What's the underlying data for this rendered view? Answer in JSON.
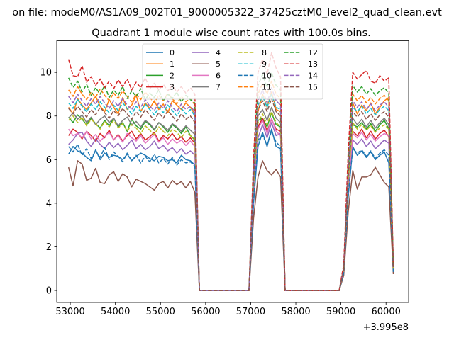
{
  "suptitle": "on file: modeM0/AS1A09_002T01_9000005322_37425cztM0_level2_quad_clean.evt",
  "chart_data": {
    "type": "line",
    "title": "Quadrant 1 module wise count rates with 100.0s bins.",
    "xlabel": "",
    "ylabel": "",
    "x_offset_label": "+3.995e8",
    "xlim": [
      52700,
      60500
    ],
    "ylim": [
      -0.55,
      11.45
    ],
    "xticks": [
      53000,
      54000,
      55000,
      56000,
      57000,
      58000,
      59000,
      60000
    ],
    "yticks": [
      0,
      2,
      4,
      6,
      8,
      10
    ],
    "grid": false,
    "legend": {
      "position": "top-center",
      "columns": 4
    },
    "segments": [
      {
        "start": 52962,
        "end": 55762,
        "step": 100
      },
      {
        "start": 55862,
        "end": 57162,
        "step": 100
      },
      {
        "start": 57262,
        "end": 57862,
        "step": 100
      },
      {
        "start": 57962,
        "end": 58962,
        "step": 100
      },
      {
        "start": 59062,
        "end": 60162,
        "step": 100
      }
    ],
    "series": [
      {
        "name": "0",
        "color": "#1f77b4",
        "dashed": false,
        "a": [
          6.25,
          6.6,
          6.4,
          6.3,
          6.1,
          5.95,
          6.45,
          6.0,
          6.3,
          6.1,
          6.2,
          6.15,
          6.0,
          6.25,
          5.95,
          6.15,
          6.3,
          6.2,
          6.05,
          5.95,
          6.15,
          6.1,
          5.95,
          6.0,
          5.85,
          6.2,
          6.0,
          5.95,
          5.75
        ],
        "c": [
          4.0,
          6.6,
          7.25,
          6.6,
          7.4,
          6.6,
          6.5
        ],
        "e": [
          0.8,
          4.3,
          6.6,
          6.2,
          6.4,
          6.1,
          6.35,
          6.0,
          6.2,
          6.35,
          5.85,
          0.9
        ]
      },
      {
        "name": "1",
        "color": "#ff7f0e",
        "dashed": false,
        "a": [
          8.4,
          8.1,
          8.8,
          8.5,
          8.3,
          8.6,
          8.9,
          8.45,
          8.2,
          8.75,
          8.4,
          8.1,
          8.85,
          8.3,
          8.5,
          8.95,
          8.2,
          8.6,
          8.35,
          8.7,
          8.3,
          8.55,
          8.15,
          8.7,
          8.5,
          8.3,
          8.6,
          8.4,
          8.1
        ],
        "c": [
          5.0,
          8.2,
          9.0,
          8.4,
          9.1,
          8.3,
          8.2
        ],
        "e": [
          1.05,
          5.5,
          8.6,
          8.1,
          8.5,
          8.25,
          8.6,
          8.1,
          8.4,
          8.7,
          8.85,
          1.15
        ]
      },
      {
        "name": "2",
        "color": "#2ca02c",
        "dashed": false,
        "a": [
          7.95,
          7.7,
          8.05,
          7.85,
          7.6,
          7.9,
          7.65,
          7.45,
          7.8,
          7.55,
          7.9,
          7.5,
          7.7,
          7.3,
          7.85,
          7.55,
          7.4,
          7.75,
          7.6,
          7.35,
          7.7,
          7.5,
          7.25,
          7.6,
          7.45,
          7.2,
          7.5,
          7.1,
          6.9
        ],
        "c": [
          4.8,
          7.8,
          7.9,
          7.5,
          8.15,
          7.6,
          7.5
        ],
        "e": [
          0.95,
          5.0,
          7.6,
          7.5,
          7.7,
          7.4,
          7.65,
          7.3,
          7.6,
          7.8,
          7.4,
          1.0
        ]
      },
      {
        "name": "3",
        "color": "#d62728",
        "dashed": false,
        "a": [
          7.1,
          7.4,
          7.25,
          6.95,
          7.3,
          7.1,
          6.85,
          7.2,
          7.0,
          7.35,
          6.9,
          7.15,
          6.85,
          7.1,
          7.3,
          6.95,
          7.2,
          6.9,
          7.05,
          7.25,
          6.85,
          7.1,
          6.95,
          7.2,
          6.9,
          7.05,
          6.8,
          7.0,
          6.75
        ],
        "c": [
          4.5,
          7.5,
          7.9,
          7.3,
          7.85,
          7.4,
          7.3
        ],
        "e": [
          0.9,
          4.8,
          7.3,
          7.1,
          7.4,
          7.0,
          7.3,
          6.95,
          7.2,
          7.35,
          7.05,
          0.95
        ]
      },
      {
        "name": "4",
        "color": "#9467bd",
        "dashed": false,
        "a": [
          6.7,
          6.9,
          7.2,
          7.25,
          6.85,
          6.6,
          6.95,
          6.7,
          6.5,
          6.8,
          6.55,
          6.75,
          6.45,
          6.65,
          6.9,
          6.5,
          6.7,
          6.45,
          6.6,
          6.85,
          6.5,
          6.65,
          6.4,
          6.55,
          6.3,
          6.5,
          6.25,
          6.4,
          6.2
        ],
        "c": [
          4.3,
          7.0,
          7.6,
          7.0,
          7.7,
          7.1,
          7.2
        ],
        "e": [
          0.85,
          4.6,
          6.9,
          6.7,
          6.95,
          6.6,
          6.85,
          6.5,
          6.7,
          6.9,
          6.75,
          0.9
        ]
      },
      {
        "name": "5",
        "color": "#8c564b",
        "dashed": false,
        "a": [
          5.65,
          4.8,
          5.95,
          5.8,
          5.05,
          5.15,
          5.6,
          4.95,
          4.9,
          5.3,
          5.45,
          5.0,
          5.35,
          5.2,
          4.75,
          5.1,
          5.0,
          4.9,
          4.75,
          4.6,
          4.9,
          5.0,
          4.7,
          5.05,
          4.85,
          5.0,
          4.7,
          5.0,
          4.5
        ],
        "c": [
          3.3,
          5.2,
          5.95,
          5.5,
          5.3,
          5.55,
          5.2
        ],
        "e": [
          0.7,
          3.6,
          5.5,
          4.65,
          5.2,
          5.2,
          5.3,
          5.65,
          5.3,
          4.95,
          4.75,
          0.75
        ]
      },
      {
        "name": "6",
        "color": "#e377c2",
        "dashed": false,
        "a": [
          7.4,
          7.1,
          7.2,
          7.0,
          7.3,
          6.95,
          7.15,
          6.85,
          7.05,
          7.25,
          6.9,
          7.1,
          6.8,
          7.2,
          7.0,
          6.85,
          7.1,
          6.75,
          6.95,
          7.15,
          6.8,
          7.0,
          6.7,
          6.95,
          6.75,
          6.9,
          6.65,
          6.85,
          6.6
        ],
        "c": [
          4.6,
          7.4,
          7.8,
          7.2,
          7.9,
          7.3,
          7.1
        ],
        "e": [
          0.9,
          4.7,
          7.2,
          7.0,
          7.25,
          6.9,
          7.15,
          6.85,
          7.05,
          7.2,
          7.1,
          0.95
        ]
      },
      {
        "name": "7",
        "color": "#7f7f7f",
        "dashed": false,
        "a": [
          7.9,
          8.15,
          7.85,
          8.05,
          7.7,
          7.95,
          7.6,
          7.85,
          8.0,
          7.7,
          7.9,
          7.55,
          7.8,
          7.95,
          7.6,
          7.75,
          7.5,
          7.8,
          7.65,
          7.4,
          7.7,
          7.55,
          7.35,
          7.65,
          7.5,
          7.3,
          7.55,
          7.35,
          7.15
        ],
        "c": [
          4.9,
          8.0,
          8.3,
          7.8,
          8.4,
          7.9,
          7.7
        ],
        "e": [
          0.95,
          5.1,
          7.9,
          7.6,
          7.85,
          7.5,
          7.8,
          7.45,
          7.7,
          7.9,
          7.6,
          1.0
        ]
      },
      {
        "name": "8",
        "color": "#bcbd22",
        "dashed": true,
        "a": [
          7.8,
          8.0,
          7.7,
          7.95,
          7.55,
          7.85,
          7.65,
          7.4,
          7.75,
          7.5,
          7.8,
          7.45,
          7.65,
          7.3,
          7.6,
          7.45,
          7.2,
          7.55,
          7.35,
          7.15,
          7.5,
          7.3,
          7.1,
          7.4,
          7.25,
          7.0,
          7.3,
          7.1,
          6.95
        ],
        "c": [
          4.8,
          7.7,
          8.1,
          7.6,
          8.2,
          7.7,
          7.5
        ],
        "e": [
          0.9,
          5.0,
          7.7,
          7.4,
          7.6,
          7.35,
          7.55,
          7.25,
          7.45,
          7.6,
          7.4,
          1.0
        ]
      },
      {
        "name": "9",
        "color": "#17becf",
        "dashed": true,
        "a": [
          8.6,
          8.35,
          8.75,
          8.45,
          8.2,
          8.55,
          8.3,
          8.65,
          8.4,
          8.15,
          8.5,
          8.25,
          8.6,
          8.35,
          8.1,
          8.45,
          8.2,
          8.55,
          8.3,
          8.05,
          8.4,
          8.15,
          8.5,
          8.25,
          8.0,
          8.35,
          8.1,
          8.3,
          8.0
        ],
        "c": [
          5.2,
          8.5,
          8.9,
          8.4,
          9.0,
          8.4,
          8.3
        ],
        "e": [
          1.0,
          5.5,
          8.4,
          8.2,
          8.45,
          8.1,
          8.35,
          8.05,
          8.3,
          8.45,
          8.25,
          1.05
        ]
      },
      {
        "name": "10",
        "color": "#1f77b4",
        "dashed": true,
        "a": [
          6.6,
          6.35,
          6.7,
          6.2,
          6.5,
          6.05,
          6.4,
          6.1,
          6.55,
          6.0,
          6.35,
          6.15,
          5.9,
          6.3,
          5.95,
          6.2,
          5.85,
          6.15,
          5.9,
          6.25,
          5.85,
          6.05,
          5.8,
          6.1,
          5.75,
          6.0,
          5.85,
          5.9,
          5.7
        ],
        "c": [
          4.1,
          6.9,
          7.1,
          6.7,
          7.3,
          6.8,
          6.6
        ],
        "e": [
          0.8,
          4.4,
          6.5,
          6.3,
          6.45,
          6.15,
          6.4,
          6.05,
          6.3,
          6.45,
          6.2,
          0.85
        ]
      },
      {
        "name": "11",
        "color": "#ff7f0e",
        "dashed": true,
        "a": [
          9.2,
          8.9,
          9.35,
          9.0,
          8.75,
          9.1,
          8.85,
          9.25,
          8.95,
          8.7,
          9.05,
          8.8,
          9.15,
          8.9,
          8.65,
          9.0,
          8.75,
          9.1,
          8.85,
          8.6,
          8.95,
          8.7,
          9.05,
          8.8,
          8.55,
          8.9,
          8.65,
          8.8,
          8.5
        ],
        "c": [
          5.5,
          9.0,
          9.5,
          9.0,
          9.6,
          9.0,
          8.8
        ],
        "e": [
          1.05,
          5.8,
          9.0,
          8.7,
          8.95,
          8.6,
          8.85,
          8.55,
          8.8,
          8.95,
          8.7,
          1.1
        ]
      },
      {
        "name": "12",
        "color": "#2ca02c",
        "dashed": true,
        "a": [
          9.75,
          9.3,
          9.6,
          9.1,
          9.45,
          8.95,
          9.3,
          9.0,
          9.4,
          8.85,
          9.2,
          8.95,
          9.35,
          8.8,
          9.15,
          8.9,
          9.25,
          8.75,
          9.05,
          8.85,
          9.2,
          8.7,
          9.0,
          8.8,
          9.1,
          8.65,
          8.95,
          8.75,
          8.6
        ],
        "c": [
          5.7,
          9.4,
          9.9,
          9.3,
          10.0,
          9.4,
          9.2
        ],
        "e": [
          1.1,
          6.0,
          9.4,
          9.1,
          9.35,
          9.0,
          9.25,
          8.95,
          9.15,
          9.3,
          9.05,
          1.1
        ]
      },
      {
        "name": "13",
        "color": "#d62728",
        "dashed": true,
        "a": [
          10.6,
          9.85,
          9.8,
          10.3,
          9.55,
          9.8,
          9.4,
          9.7,
          9.3,
          9.6,
          9.25,
          9.65,
          9.35,
          9.7,
          9.2,
          9.55,
          9.3,
          9.75,
          9.25,
          9.5,
          9.2,
          9.45,
          9.15,
          9.4,
          9.1,
          9.35,
          9.05,
          9.3,
          9.0
        ],
        "c": [
          6.1,
          10.0,
          10.6,
          9.9,
          10.9,
          10.2,
          9.8
        ],
        "e": [
          1.2,
          6.4,
          10.0,
          9.7,
          9.9,
          10.1,
          9.6,
          9.5,
          9.85,
          9.6,
          9.75,
          1.2
        ]
      },
      {
        "name": "14",
        "color": "#9467bd",
        "dashed": true,
        "a": [
          8.9,
          8.6,
          9.0,
          8.7,
          8.45,
          8.8,
          8.55,
          8.9,
          8.6,
          8.35,
          8.7,
          8.45,
          8.8,
          8.5,
          8.3,
          8.65,
          8.4,
          8.75,
          8.45,
          8.25,
          8.6,
          8.35,
          8.7,
          8.4,
          8.2,
          8.55,
          8.3,
          8.45,
          8.2
        ],
        "c": [
          5.3,
          8.7,
          9.2,
          8.6,
          9.3,
          8.7,
          8.5
        ],
        "e": [
          1.0,
          5.6,
          8.7,
          8.4,
          8.65,
          8.3,
          8.55,
          8.25,
          8.5,
          8.65,
          8.4,
          1.05
        ]
      },
      {
        "name": "15",
        "color": "#8c564b",
        "dashed": true,
        "a": [
          8.35,
          8.1,
          8.45,
          8.2,
          7.95,
          8.3,
          8.05,
          8.4,
          8.15,
          7.9,
          8.25,
          8.0,
          8.35,
          8.1,
          7.85,
          8.2,
          7.95,
          8.3,
          8.05,
          7.8,
          8.15,
          7.9,
          8.25,
          8.0,
          7.75,
          8.1,
          7.85,
          8.0,
          7.7
        ],
        "c": [
          5.1,
          8.3,
          8.7,
          8.2,
          8.8,
          8.2,
          8.0
        ],
        "e": [
          0.95,
          5.3,
          8.2,
          7.95,
          8.2,
          7.85,
          8.1,
          7.8,
          8.05,
          8.2,
          7.95,
          1.0
        ]
      }
    ]
  }
}
